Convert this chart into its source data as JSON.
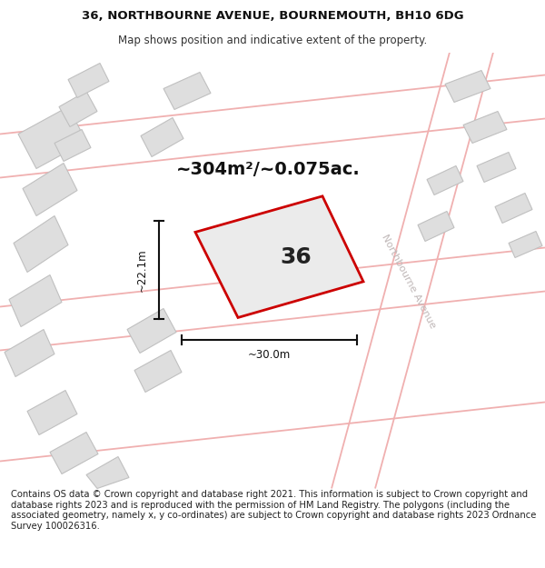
{
  "title_line1": "36, NORTHBOURNE AVENUE, BOURNEMOUTH, BH10 6DG",
  "title_line2": "Map shows position and indicative extent of the property.",
  "footer_text": "Contains OS data © Crown copyright and database right 2021. This information is subject to Crown copyright and database rights 2023 and is reproduced with the permission of HM Land Registry. The polygons (including the associated geometry, namely x, y co-ordinates) are subject to Crown copyright and database rights 2023 Ordnance Survey 100026316.",
  "area_label": "~304m²/~0.075ac.",
  "width_label": "~30.0m",
  "height_label": "~22.1m",
  "plot_number": "36",
  "map_bg": "#f7f7f7",
  "plot_edge_color": "#cc0000",
  "road_line_color": "#f0b0b0",
  "building_fill": "#dedede",
  "building_edge": "#c0c0c0",
  "dim_line_color": "#111111",
  "road_label_color": "#c0b8b8",
  "title_fontsize": 9.5,
  "subtitle_fontsize": 8.5,
  "area_fontsize": 14,
  "plot_num_fontsize": 18,
  "footer_fontsize": 7.2
}
